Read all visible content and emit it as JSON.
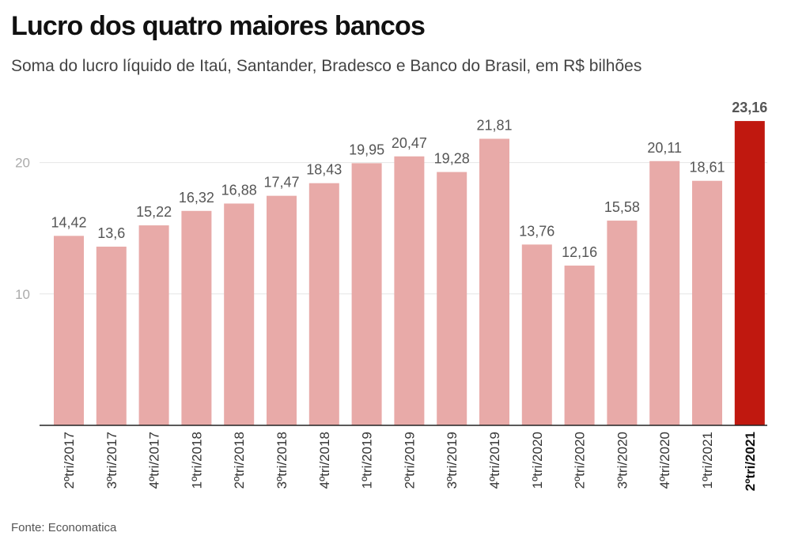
{
  "header": {
    "title": "Lucro dos quatro maiores bancos",
    "subtitle": "Soma do lucro líquido de Itaú, Santander, Bradesco e Banco do Brasil, em R$ bilhões"
  },
  "footer": {
    "source": "Fonte: Economatica"
  },
  "colors": {
    "bar": "#e8aaa8",
    "highlight": "#c0180f",
    "grid": "#e6e6e6",
    "axis": "#222222"
  },
  "chart_data": {
    "type": "bar",
    "categories": [
      "2ºtri/2017",
      "3ºtri/2017",
      "4ºtri/2017",
      "1ºtri/2018",
      "2ºtri/2018",
      "3ºtri/2018",
      "4ºtri/2018",
      "1ºtri/2019",
      "2ºtri/2019",
      "3ºtri/2019",
      "4ºtri/2019",
      "1ºtri/2020",
      "2ºtri/2020",
      "3ºtri/2020",
      "4ºtri/2020",
      "1ºtri/2021",
      "2ºtri/2021"
    ],
    "values": [
      14.42,
      13.6,
      15.22,
      16.32,
      16.88,
      17.47,
      18.43,
      19.95,
      20.47,
      19.28,
      21.81,
      13.76,
      12.16,
      15.58,
      20.11,
      18.61,
      23.16
    ],
    "value_labels": [
      "14,42",
      "13,6",
      "15,22",
      "16,32",
      "16,88",
      "17,47",
      "18,43",
      "19,95",
      "20,47",
      "19,28",
      "21,81",
      "13,76",
      "12,16",
      "15,58",
      "20,11",
      "18,61",
      "23,16"
    ],
    "highlight_index": 16,
    "yticks": [
      10,
      20
    ],
    "ylim": [
      0,
      25
    ],
    "grid": true,
    "title": "Lucro dos quatro maiores bancos",
    "xlabel": "",
    "ylabel": ""
  }
}
